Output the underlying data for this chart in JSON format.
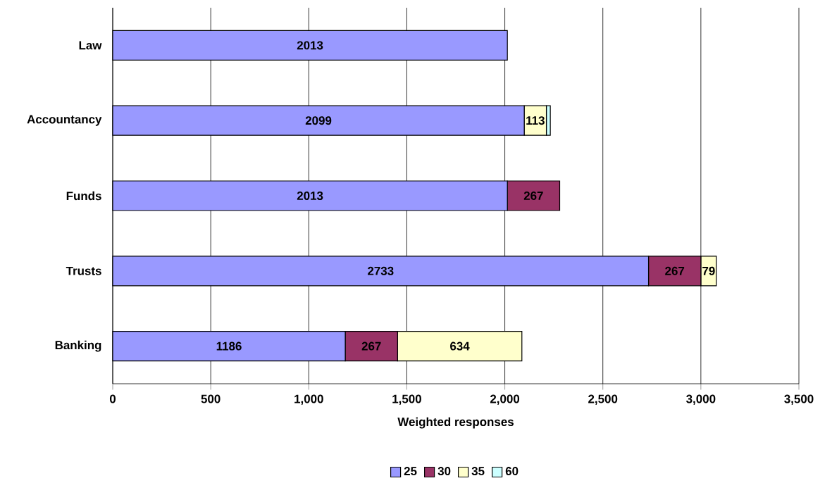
{
  "chart_data": {
    "type": "bar",
    "orientation": "horizontal",
    "stacked": true,
    "categories": [
      "Law",
      "Accountancy",
      "Funds",
      "Trusts",
      "Banking"
    ],
    "xlabel": "Weighted responses",
    "series": [
      {
        "name": "25",
        "color": "#9999ff",
        "values": [
          2013,
          2099,
          2013,
          2733,
          1186
        ],
        "value_labels": [
          "2013",
          "2099",
          "2013",
          "2733",
          "1186"
        ]
      },
      {
        "name": "30",
        "color": "#993366",
        "values": [
          null,
          null,
          267,
          267,
          267
        ],
        "value_labels": [
          null,
          null,
          "267",
          "267",
          "267"
        ]
      },
      {
        "name": "35",
        "color": "#ffffcc",
        "values": [
          null,
          113,
          null,
          79,
          634
        ],
        "value_labels": [
          null,
          "113",
          null,
          "79",
          "634"
        ]
      },
      {
        "name": "60",
        "color": "#ccffff",
        "values": [
          null,
          20,
          null,
          null,
          null
        ]
      }
    ],
    "xlim": [
      0,
      3500
    ],
    "xticks": [
      0,
      500,
      {
        "value": 1000,
        "label": "1,000"
      },
      {
        "value": 1500,
        "label": "1,500"
      },
      {
        "value": 2000,
        "label": "2,000"
      },
      {
        "value": 2500,
        "label": "2,500"
      },
      {
        "value": 3000,
        "label": "3,000"
      },
      {
        "value": 3500,
        "label": "3,500"
      }
    ],
    "grid": "x",
    "legend": "bottom"
  }
}
